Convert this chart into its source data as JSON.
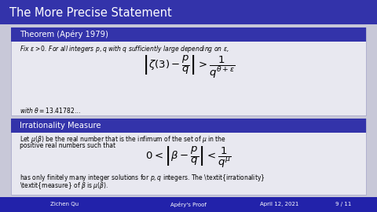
{
  "title": "The More Precise Statement",
  "title_bg": "#3333aa",
  "title_color": "#ffffff",
  "slide_bg": "#c8c8d8",
  "box1_header": "Theorem (Apéry 1979)",
  "box1_header_bg": "#3333aa",
  "box1_header_color": "#ffffff",
  "box1_bg": "#e8e8f0",
  "box1_text1": "Fix $\\epsilon > 0$. For all integers $p, q$ with $q$ sufficiently large depending on $\\epsilon$,",
  "box1_formula": "$\\left|\\zeta(3) - \\dfrac{p}{q}\\right| > \\dfrac{1}{q^{\\theta+\\epsilon}}$",
  "box1_text2": "with $\\theta = 13.41782\\ldots$",
  "box2_header": "Irrationality Measure",
  "box2_header_bg": "#3333aa",
  "box2_header_color": "#ffffff",
  "box2_bg": "#e8e8f0",
  "box2_text1": "Let $\\mu(\\beta)$ be the real number that is the infimum of the set of $\\mu$ in the",
  "box2_text2": "positive real numbers such that",
  "box2_formula": "$0 < \\left|\\beta - \\dfrac{p}{q}\\right| < \\dfrac{1}{q^{\\mu}}$",
  "box2_text3": "has only finitely many integer solutions for $p, q$ integers. The \\textit{irrationality}",
  "box2_text4": "\\textit{measure} of $\\beta$ is $\\mu(\\beta)$.",
  "footer_left": "Zichen Qu",
  "footer_center": "Apéry's Proof",
  "footer_right": "April 12, 2021",
  "footer_page": "9 / 11",
  "footer_bg": "#2222aa",
  "footer_color": "#ffffff"
}
